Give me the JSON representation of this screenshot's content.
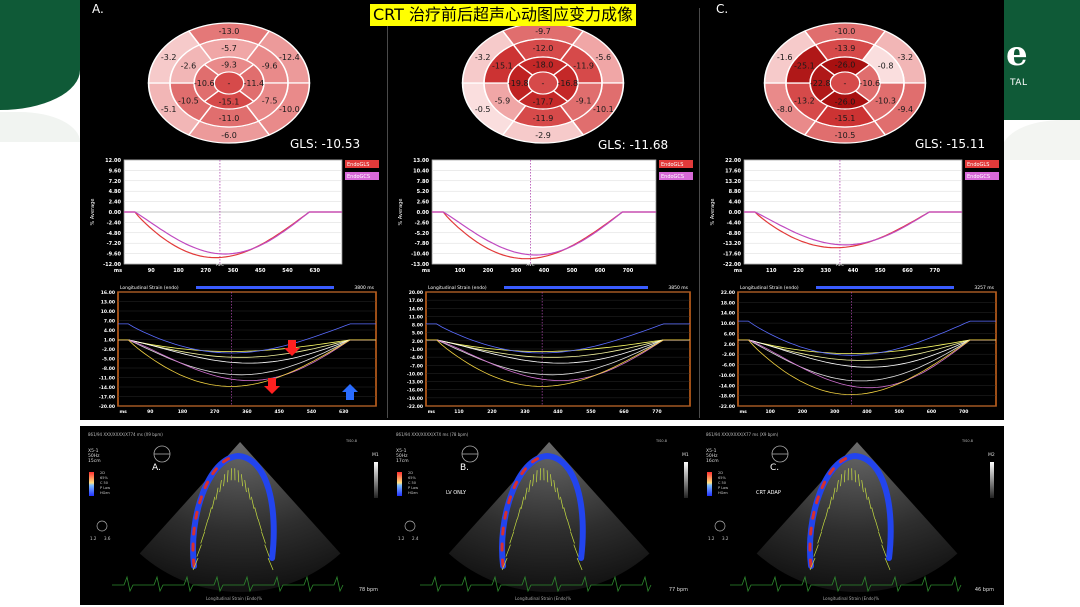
{
  "title": "CRT 治疗前后超声心动图应变力成像",
  "logo": {
    "glyph": "e",
    "text": "TAL"
  },
  "panels": [
    {
      "letter": "A.",
      "gls": "GLS: -10.53",
      "bullseye": {
        "outer": [
          "-13.0",
          "-12.4",
          "-10.0",
          "-6.0",
          "-5.1",
          "-3.2"
        ],
        "middle": [
          "-5.7",
          "-9.6",
          "-7.5",
          "-11.0",
          "-10.5",
          "-2.6"
        ],
        "inner": [
          "-9.3",
          "-11.4",
          "-15.1",
          "-10.6"
        ],
        "apex": "-",
        "segment_colors": {
          "outer": [
            "#e47878",
            "#ec9a9a",
            "#e98a8a",
            "#ec9a9a",
            "#f2b6b6",
            "#f6caca"
          ],
          "middle": [
            "#f0a6a6",
            "#e98a8a",
            "#e98a8a",
            "#e06e6e",
            "#e06e6e",
            "#f2b6b6"
          ],
          "inner": [
            "#e98a8a",
            "#e06e6e",
            "#d64a4a",
            "#e06e6e"
          ]
        }
      },
      "avg_chart": {
        "yticks": [
          "12.00",
          "9.60",
          "7.20",
          "4.80",
          "2.40",
          "0.00",
          "-2.40",
          "-4.80",
          "-7.20",
          "-9.60",
          "-12.00"
        ],
        "xticks": [
          "ms",
          "90",
          "180",
          "270",
          "360",
          "450",
          "540",
          "630"
        ],
        "ylabel": "% Average",
        "legend": [
          "EndoGLS",
          "EndoGCS"
        ],
        "marker": "AVC",
        "min_value": -10.53
      },
      "strain_chart": {
        "title": "Longitudinal Strain (endo)",
        "right_label": "3800 ms",
        "yticks": [
          "16.00",
          "13.00",
          "10.00",
          "7.00",
          "4.00",
          "1.00",
          "-2.00",
          "-5.00",
          "-8.00",
          "-11.00",
          "-14.00",
          "-17.00",
          "-20.00"
        ],
        "xticks": [
          "ms",
          "90",
          "180",
          "270",
          "360",
          "450",
          "540",
          "630"
        ]
      },
      "echo": {
        "letter": "A.",
        "header": "861/94 XXX/XXXX/X774 ms (X9 bpm)",
        "params": [
          "X5-1",
          "50Hz",
          "15cm"
        ],
        "gain": [
          "2D",
          "65%",
          "C 50",
          "P Low",
          "HGen"
        ],
        "scale": [
          "1.2",
          "3.6"
        ],
        "mode": "",
        "footer_center": "Longitudinal Strain (Endo)%",
        "footer_right": "78 bpm",
        "top_right": [
          "TIS0.8",
          "M1"
        ]
      }
    },
    {
      "letter": "",
      "gls": "GLS: -11.68",
      "bullseye": {
        "outer": [
          "-9.7",
          "-5.6",
          "-10.1",
          "-2.9",
          "-0.5",
          "-3.2"
        ],
        "middle": [
          "-12.0",
          "-11.9",
          "-9.1",
          "-11.9",
          "-5.9",
          "-15.1"
        ],
        "inner": [
          "-18.0",
          "-16.8",
          "-17.7",
          "-19.8"
        ],
        "apex": "-",
        "segment_colors": {
          "outer": [
            "#e06e6e",
            "#f0a6a6",
            "#e06e6e",
            "#f6caca",
            "#fadede",
            "#f6caca"
          ],
          "middle": [
            "#d64a4a",
            "#d64a4a",
            "#e06e6e",
            "#d64a4a",
            "#f0a6a6",
            "#cc3333"
          ],
          "inner": [
            "#c42828",
            "#c42828",
            "#c42828",
            "#bf2222"
          ]
        }
      },
      "avg_chart": {
        "yticks": [
          "13.00",
          "10.40",
          "7.80",
          "5.20",
          "2.60",
          "0.00",
          "-2.60",
          "-5.20",
          "-7.80",
          "-10.40",
          "-13.00"
        ],
        "xticks": [
          "ms",
          "100",
          "200",
          "300",
          "400",
          "500",
          "600",
          "700"
        ],
        "ylabel": "% Average",
        "legend": [
          "EndoGLS",
          "EndoGCS"
        ],
        "marker": "AVC",
        "min_value": -11.68
      },
      "strain_chart": {
        "title": "Longitudinal Strain (endo)",
        "right_label": "3850 ms",
        "yticks": [
          "20.00",
          "17.00",
          "14.00",
          "11.00",
          "8.00",
          "5.00",
          "2.00",
          "-1.00",
          "-4.00",
          "-7.00",
          "-10.00",
          "-13.00",
          "-16.00",
          "-19.00",
          "-22.00"
        ],
        "xticks": [
          "ms",
          "110",
          "220",
          "330",
          "440",
          "550",
          "660",
          "770"
        ]
      },
      "echo": {
        "letter": "B.",
        "header": "861/94 XXX/XXXX/X7X ms (78 bpm)",
        "params": [
          "X5-1",
          "50Hz",
          "17cm"
        ],
        "gain": [
          "2D",
          "65%",
          "C 50",
          "P Low",
          "HGen"
        ],
        "scale": [
          "1.2",
          "2.4"
        ],
        "mode": "LV ONLY",
        "footer_center": "Longitudinal Strain (Endo)%",
        "footer_right": "77 bpm",
        "top_right": [
          "TIS0.8",
          "M1"
        ]
      }
    },
    {
      "letter": "C.",
      "gls": "GLS: -15.11",
      "bullseye": {
        "outer": [
          "-10.0",
          "-3.2",
          "-9.4",
          "-10.5",
          "-8.0",
          "-1.6"
        ],
        "middle": [
          "-13.9",
          "-0.8",
          "-10.3",
          "-15.1",
          "-13.2",
          "-25.1"
        ],
        "inner": [
          "-26.0",
          "-10.6",
          "-26.0",
          "-22.8"
        ],
        "apex": "-",
        "segment_colors": {
          "outer": [
            "#e06e6e",
            "#f2b6b6",
            "#e06e6e",
            "#e06e6e",
            "#e98a8a",
            "#f6caca"
          ],
          "middle": [
            "#d64a4a",
            "#fadede",
            "#e06e6e",
            "#cc3333",
            "#d64a4a",
            "#b01818"
          ],
          "inner": [
            "#a81010",
            "#e06e6e",
            "#a81010",
            "#b01818"
          ]
        }
      },
      "avg_chart": {
        "yticks": [
          "22.00",
          "17.60",
          "13.20",
          "8.80",
          "4.40",
          "0.00",
          "-4.40",
          "-8.80",
          "-13.20",
          "-17.60",
          "-22.00"
        ],
        "xticks": [
          "ms",
          "110",
          "220",
          "330",
          "440",
          "550",
          "660",
          "770"
        ],
        "ylabel": "% Average",
        "legend": [
          "EndoGLS",
          "EndoGCS"
        ],
        "marker": "AVC",
        "min_value": -15.11
      },
      "strain_chart": {
        "title": "Longitudinal Strain (endo)",
        "right_label": "3257 ms",
        "yticks": [
          "22.00",
          "18.00",
          "14.00",
          "10.00",
          "6.00",
          "2.00",
          "-2.00",
          "-6.00",
          "-10.00",
          "-14.00",
          "-18.00",
          "-22.00"
        ],
        "xticks": [
          "ms",
          "100",
          "200",
          "300",
          "400",
          "500",
          "600",
          "700"
        ]
      },
      "echo": {
        "letter": "C.",
        "header": "861/94 XXX/XXXX/X77 ms (X9 bpm)",
        "params": [
          "X5-1",
          "50Hz",
          "16cm"
        ],
        "gain": [
          "2D",
          "65%",
          "C 50",
          "P Low",
          "HGen"
        ],
        "scale": [
          "1.2",
          "3.2"
        ],
        "mode": "CRT ADAP",
        "footer_center": "Longitudinal Strain (Endo)%",
        "footer_right": "46 bpm",
        "top_right": [
          "TIS0.8",
          "M2"
        ]
      }
    }
  ]
}
